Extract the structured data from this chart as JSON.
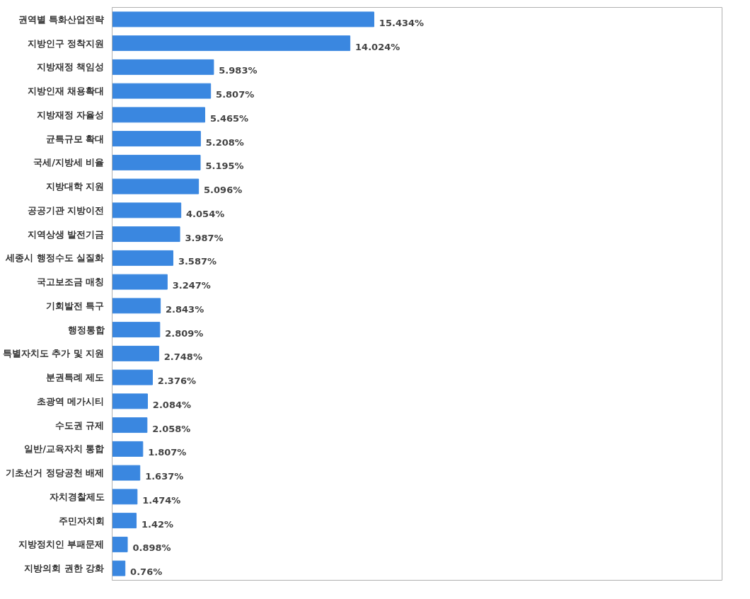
{
  "chart_data": {
    "type": "bar",
    "orientation": "horizontal",
    "color": "#3a87e0",
    "grid": false,
    "tick_labels": "y",
    "categories": [
      "권역별 특화산업전략",
      "지방인구 정착지원",
      "지방재정 책임성",
      "지방인재 채용확대",
      "지방재정 자율성",
      "균특규모 확대",
      "국세/지방세 비율",
      "지방대학 지원",
      "공공기관 지방이전",
      "지역상생 발전기금",
      "세종시 행정수도 실질화",
      "국고보조금 매칭",
      "기회발전 특구",
      "행정통합",
      "특별자치도 추가 및 지원",
      "분권특례 제도",
      "초광역 메가시티",
      "수도권 규제",
      "일반/교육자치 통합",
      "기초선거 정당공천 배제",
      "자치경찰제도",
      "주민자치회",
      "지방정치인 부패문제",
      "지방의회 권한 강화"
    ],
    "values": [
      15.434,
      14.024,
      5.983,
      5.807,
      5.465,
      5.208,
      5.195,
      5.096,
      4.054,
      3.987,
      3.587,
      3.247,
      2.843,
      2.809,
      2.748,
      2.376,
      2.084,
      2.058,
      1.807,
      1.637,
      1.474,
      1.42,
      0.898,
      0.76
    ],
    "value_labels": [
      "15.434%",
      "14.024%",
      "5.983%",
      "5.807%",
      "5.465%",
      "5.208%",
      "5.195%",
      "5.096%",
      "4.054%",
      "3.987%",
      "3.587%",
      "3.247%",
      "2.843%",
      "2.809%",
      "2.748%",
      "2.376%",
      "2.084%",
      "2.058%",
      "1.807%",
      "1.637%",
      "1.474%",
      "1.42%",
      "0.898%",
      "0.76%"
    ]
  }
}
